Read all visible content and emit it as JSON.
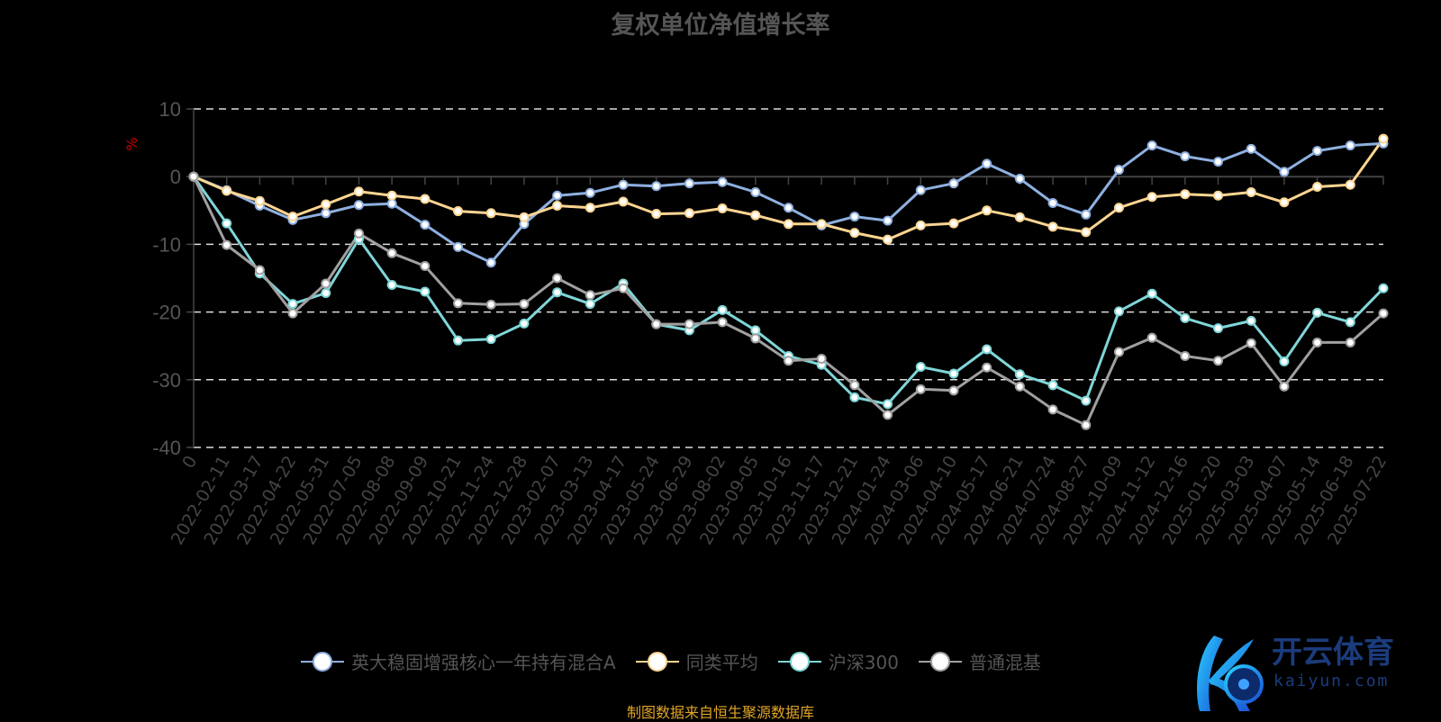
{
  "chart_data": {
    "type": "line",
    "title": "复权单位净值增长率",
    "ylabel": "%",
    "ylim": [
      -40,
      10
    ],
    "yticks": [
      10,
      0,
      -10,
      -20,
      -30,
      -40
    ],
    "grid": true,
    "legend_position": "bottom",
    "x": [
      "0",
      "2022-02-11",
      "2022-03-17",
      "2022-04-22",
      "2022-05-31",
      "2022-07-05",
      "2022-08-08",
      "2022-09-09",
      "2022-10-21",
      "2022-11-24",
      "2022-12-28",
      "2023-02-07",
      "2023-03-13",
      "2023-04-17",
      "2023-05-24",
      "2023-06-29",
      "2023-08-02",
      "2023-09-05",
      "2023-10-16",
      "2023-11-17",
      "2023-12-21",
      "2024-01-24",
      "2024-03-06",
      "2024-04-10",
      "2024-05-17",
      "2024-06-21",
      "2024-07-24",
      "2024-08-27",
      "2024-10-09",
      "2024-11-12",
      "2024-12-16",
      "2025-01-20",
      "2025-03-03",
      "2025-04-07",
      "2025-05-14",
      "2025-06-18",
      "2025-07-22"
    ],
    "series": [
      {
        "name": "英大稳固增强核心一年持有混合A",
        "color": "#8fb0e0",
        "values": [
          0,
          -2,
          -4.3,
          -6.4,
          -5.4,
          -4.2,
          -4,
          -7.1,
          -10.4,
          -12.7,
          -7,
          -2.8,
          -2.4,
          -1.2,
          -1.4,
          -1.0,
          -0.8,
          -2.3,
          -4.6,
          -7.2,
          -5.9,
          -6.5,
          -2,
          -1,
          1.9,
          -0.3,
          -3.9,
          -5.6,
          1,
          4.6,
          3,
          2.2,
          4.1,
          0.7,
          3.8,
          4.6,
          4.9
        ]
      },
      {
        "name": "同类平均",
        "color": "#fdd591",
        "values": [
          0,
          -2.1,
          -3.6,
          -5.9,
          -4.1,
          -2.2,
          -2.8,
          -3.3,
          -5.1,
          -5.4,
          -6,
          -4.3,
          -4.6,
          -3.7,
          -5.5,
          -5.4,
          -4.7,
          -5.7,
          -7,
          -7,
          -8.3,
          -9.3,
          -7.2,
          -6.9,
          -5,
          -6,
          -7.4,
          -8.2,
          -4.6,
          -3,
          -2.6,
          -2.8,
          -2.3,
          -3.8,
          -1.5,
          -1.2,
          5.6
        ]
      },
      {
        "name": "沪深300",
        "color": "#7fd6d8",
        "values": [
          0,
          -6.9,
          -14.3,
          -18.8,
          -17.2,
          -9.2,
          -16,
          -17,
          -24.2,
          -24,
          -21.7,
          -17.1,
          -18.8,
          -15.8,
          -21.8,
          -22.7,
          -19.7,
          -22.7,
          -26.5,
          -27.8,
          -32.6,
          -33.6,
          -28.1,
          -29.1,
          -25.5,
          -29.2,
          -30.8,
          -33.1,
          -19.9,
          -17.3,
          -20.9,
          -22.4,
          -21.3,
          -27.3,
          -20.1,
          -21.5,
          -16.5
        ]
      },
      {
        "name": "普通混基",
        "color": "#a0a0a0",
        "values": [
          0,
          -10.1,
          -13.8,
          -20.2,
          -15.8,
          -8.4,
          -11.3,
          -13.2,
          -18.7,
          -18.9,
          -18.8,
          -15,
          -17.5,
          -16.5,
          -21.8,
          -21.8,
          -21.5,
          -23.9,
          -27.2,
          -26.9,
          -30.8,
          -35.2,
          -31.4,
          -31.6,
          -28.2,
          -31,
          -34.4,
          -36.7,
          -25.9,
          -23.8,
          -26.5,
          -27.2,
          -24.6,
          -31,
          -24.5,
          -24.5,
          -20.2
        ]
      }
    ]
  },
  "source": "制图数据来自恒生聚源数据库",
  "watermark": {
    "name": "开云体育",
    "url_text": "kaiyun.com"
  }
}
